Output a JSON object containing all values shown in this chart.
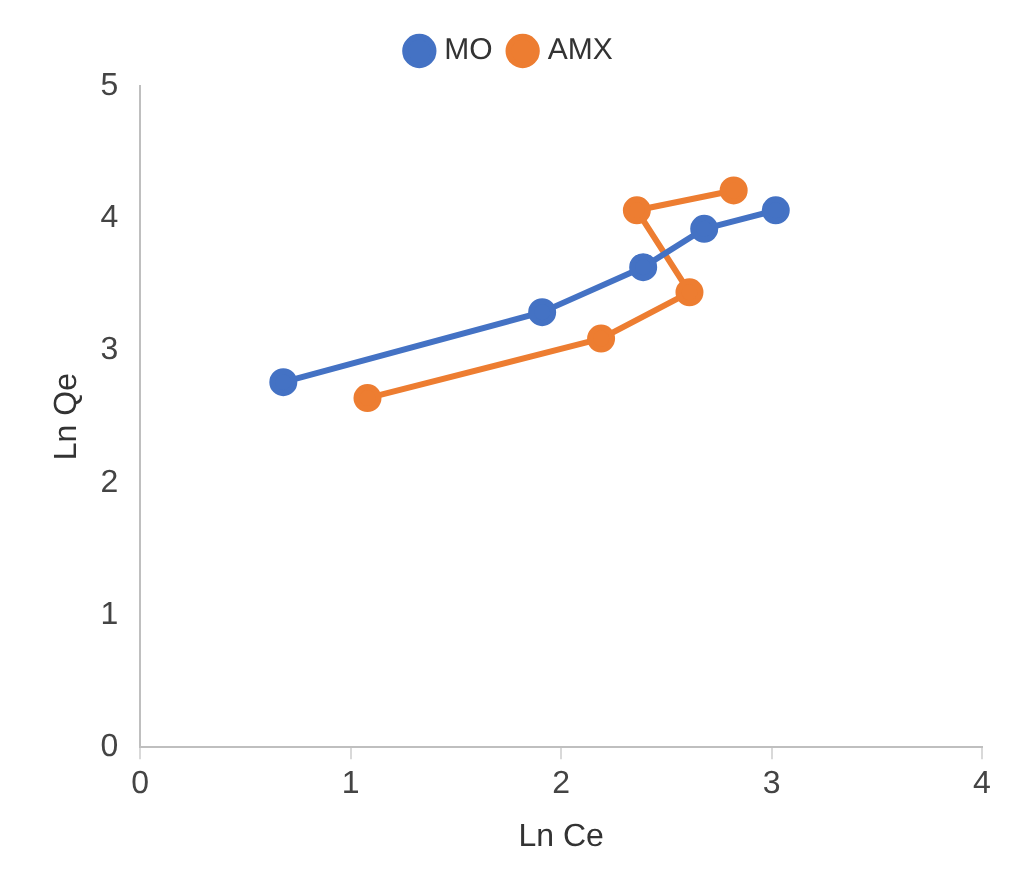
{
  "chart_data": {
    "type": "line",
    "xlabel": "Ln Ce",
    "ylabel": "Ln Qe",
    "xlim": [
      0,
      4
    ],
    "xticks": [
      0,
      1,
      2,
      3,
      4
    ],
    "ylim": [
      0,
      5
    ],
    "yticks": [
      0,
      1,
      2,
      3,
      4,
      5
    ],
    "grid": false,
    "legend": "top",
    "marker": "circle",
    "line_style": "solid",
    "series": [
      {
        "name": "MO",
        "color": "#4472c4",
        "x": [
          0.68,
          1.91,
          2.39,
          2.68,
          3.02
        ],
        "values": [
          2.76,
          3.29,
          3.63,
          3.92,
          4.06
        ]
      },
      {
        "name": "AMX",
        "color": "#ed7d31",
        "x": [
          1.08,
          2.19,
          2.61,
          2.36,
          2.82
        ],
        "values": [
          2.64,
          3.09,
          3.44,
          4.06,
          4.21
        ]
      }
    ]
  }
}
